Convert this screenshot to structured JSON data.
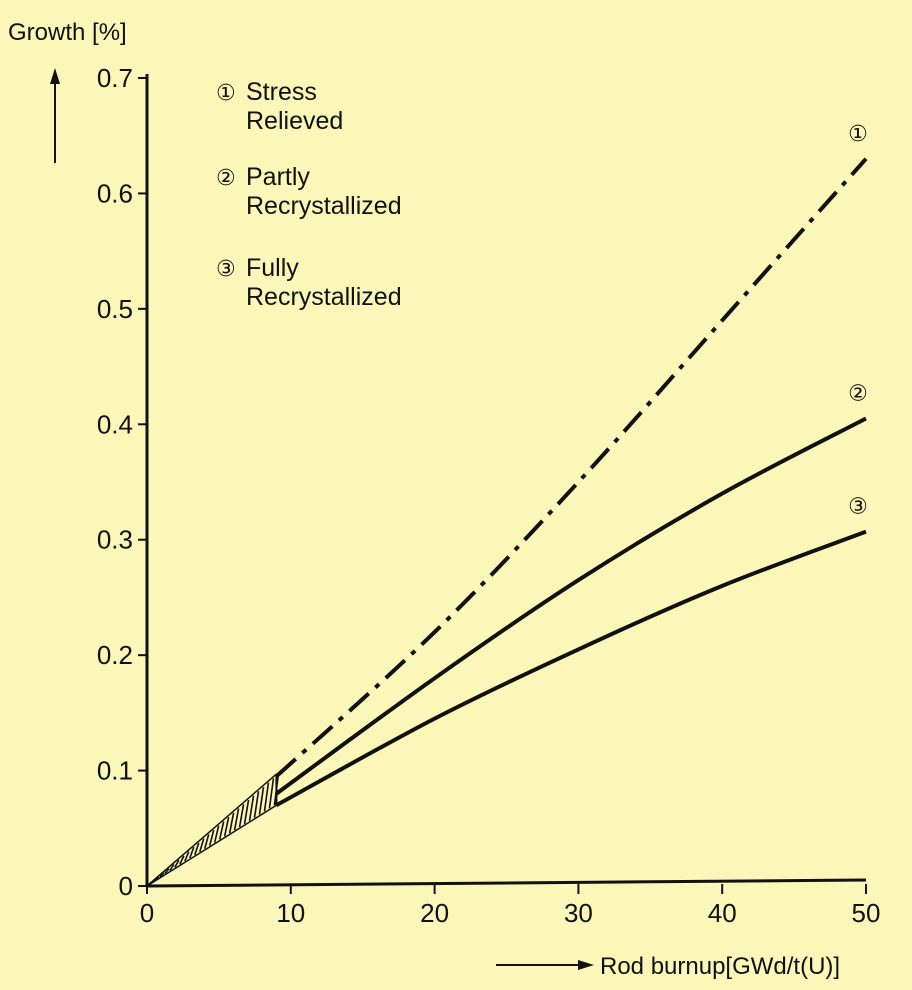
{
  "chart_data": {
    "type": "line",
    "ylabel": "Growth [%]",
    "xlabel": "Rod burnup[GWd/t(U)]",
    "xlim": [
      0,
      50
    ],
    "ylim": [
      0,
      0.7
    ],
    "x_ticks": [
      "0",
      "10",
      "20",
      "30",
      "40",
      "50"
    ],
    "y_ticks": [
      "0",
      "0.1",
      "0.2",
      "0.3",
      "0.4",
      "0.5",
      "0.6",
      "0.7"
    ],
    "grid": false,
    "legend": [
      {
        "marker": "①",
        "lines": [
          "Stress",
          "Relieved"
        ]
      },
      {
        "marker": "②",
        "lines": [
          "Partly",
          "Recrystallized"
        ]
      },
      {
        "marker": "③",
        "lines": [
          "Fully",
          "Recrystallized"
        ]
      }
    ],
    "series": [
      {
        "marker": "①",
        "style": "dash-dot",
        "x": [
          9,
          20,
          30,
          40,
          50
        ],
        "y": [
          0.095,
          0.22,
          0.35,
          0.49,
          0.63
        ]
      },
      {
        "marker": "②",
        "style": "solid",
        "x": [
          9,
          20,
          30,
          40,
          50
        ],
        "y": [
          0.08,
          0.18,
          0.265,
          0.34,
          0.405
        ]
      },
      {
        "marker": "③",
        "style": "solid",
        "x": [
          9,
          20,
          30,
          40,
          50
        ],
        "y": [
          0.07,
          0.145,
          0.205,
          0.26,
          0.307
        ]
      }
    ],
    "low_burnup_band": {
      "x": [
        0,
        9
      ],
      "y_low": [
        0,
        0.07
      ],
      "y_high": [
        0,
        0.097
      ]
    }
  }
}
